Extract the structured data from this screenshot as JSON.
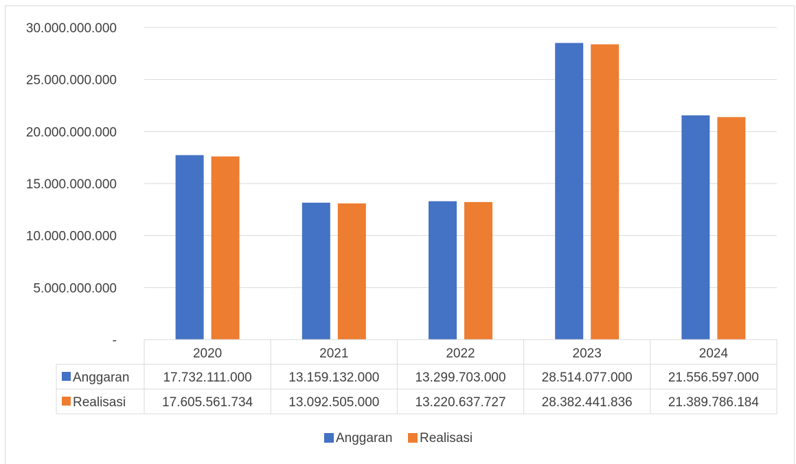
{
  "chart_data": {
    "type": "bar",
    "categories": [
      "2020",
      "2021",
      "2022",
      "2023",
      "2024"
    ],
    "series": [
      {
        "name": "Anggaran",
        "color": "#4472C4",
        "values": [
          17732111000,
          13159132000,
          13299703000,
          28514077000,
          21556597000
        ],
        "labels": [
          "17.732.111.000",
          "13.159.132.000",
          "13.299.703.000",
          "28.514.077.000",
          "21.556.597.000"
        ]
      },
      {
        "name": "Realisasi",
        "color": "#ED7D31",
        "values": [
          17605561734,
          13092505000,
          13220637727,
          28382441836,
          21389786184
        ],
        "labels": [
          "17.605.561.734",
          "13.092.505.000",
          "13.220.637.727",
          "28.382.441.836",
          "21.389.786.184"
        ]
      }
    ],
    "ylim": [
      0,
      30000000000
    ],
    "yticks": [
      {
        "value": 30000000000,
        "label": "30.000.000.000"
      },
      {
        "value": 25000000000,
        "label": "25.000.000.000"
      },
      {
        "value": 20000000000,
        "label": "20.000.000.000"
      },
      {
        "value": 15000000000,
        "label": "15.000.000.000"
      },
      {
        "value": 10000000000,
        "label": "10.000.000.000"
      },
      {
        "value": 5000000000,
        "label": "5.000.000.000"
      },
      {
        "value": 0,
        "label": "-"
      }
    ],
    "grid": true,
    "legend_position": "bottom",
    "data_table": true
  }
}
